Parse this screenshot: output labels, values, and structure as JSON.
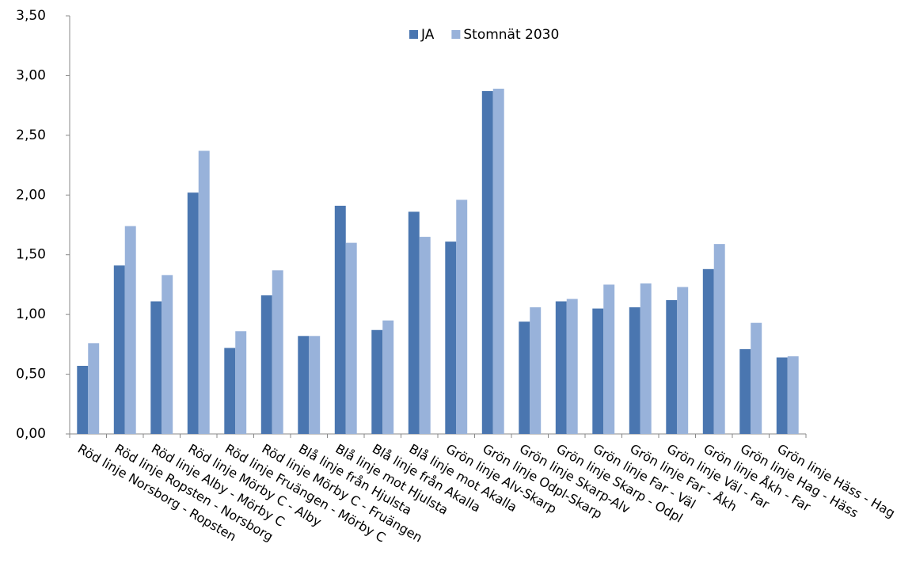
{
  "chart_data": {
    "type": "bar",
    "categories": [
      "Röd linje Norsborg - Ropsten",
      "Röd linje Ropsten - Norsborg",
      "Röd linje Alby - Mörby C",
      "Röd linje Mörby C - Alby",
      "Röd linje Fruängen - Mörby C",
      "Röd linje Mörby C - Fruängen",
      "Blå linje från Hjulsta",
      "Blå linje mot Hjulsta",
      "Blå linje från Akalla",
      "Blå linje mot Akalla",
      "Grön linje Alv-Skarp",
      "Grön linje Odpl-Skarp",
      "Grön linje Skarp-Alv",
      "Grön linje Skarp - Odpl",
      "Grön linje Far - Väl",
      "Grön linje Far - Åkh",
      "Grön linje Väl - Far",
      "Grön linje Åkh - Far",
      "Grön linje Hag - Häss",
      "Grön linje Häss - Hag"
    ],
    "series": [
      {
        "name": "JA",
        "color": "#4a76b0",
        "values": [
          0.57,
          1.41,
          1.11,
          2.02,
          0.72,
          1.16,
          0.82,
          1.91,
          0.87,
          1.86,
          1.61,
          2.87,
          0.94,
          1.11,
          1.05,
          1.06,
          1.12,
          1.38,
          0.71,
          0.64
        ]
      },
      {
        "name": "Stomnät 2030",
        "color": "#98b2da",
        "values": [
          0.76,
          1.74,
          1.33,
          2.37,
          0.86,
          1.37,
          0.82,
          1.6,
          0.95,
          1.65,
          1.96,
          2.89,
          1.06,
          1.13,
          1.25,
          1.26,
          1.23,
          1.59,
          0.93,
          0.65
        ]
      }
    ],
    "ylim": [
      0,
      3.5
    ],
    "yticks": [
      {
        "value": 0,
        "label": "0,00"
      },
      {
        "value": 0.5,
        "label": "0,50"
      },
      {
        "value": 1,
        "label": "1,00"
      },
      {
        "value": 1.5,
        "label": "1,50"
      },
      {
        "value": 2,
        "label": "2,00"
      },
      {
        "value": 2.5,
        "label": "2,50"
      },
      {
        "value": 3,
        "label": "3,00"
      },
      {
        "value": 3.5,
        "label": "3,50"
      }
    ],
    "grid": false,
    "legend": "top"
  }
}
